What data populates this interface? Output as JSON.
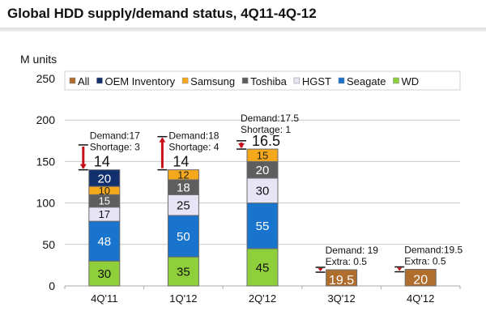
{
  "title": "Global HDD supply/demand status, 4Q11-4Q-12",
  "chart_data": {
    "type": "bar",
    "stacked": true,
    "ylabel": "M units",
    "xlabel": "",
    "ylim": [
      0,
      250
    ],
    "yticks": [
      0,
      50,
      100,
      150,
      200,
      250
    ],
    "grid": true,
    "legend_position": "top",
    "categories": [
      "4Q'11",
      "1Q'12",
      "2Q'12",
      "3Q'12",
      "4Q'12"
    ],
    "series": [
      {
        "name": "WD",
        "color": "#8fcf3c",
        "label_color": "#111111",
        "values": [
          30,
          35,
          45,
          null,
          null
        ]
      },
      {
        "name": "Seagate",
        "color": "#1874cd",
        "label_color": "#ffffff",
        "values": [
          48,
          50,
          55,
          null,
          null
        ]
      },
      {
        "name": "HGST",
        "color": "#e6e4f5",
        "label_color": "#111111",
        "values": [
          17,
          25,
          30,
          null,
          null
        ]
      },
      {
        "name": "Toshiba",
        "color": "#5e5e5e",
        "label_color": "#ffffff",
        "values": [
          15,
          18,
          20,
          null,
          null
        ]
      },
      {
        "name": "Samsung",
        "color": "#f5a81c",
        "label_color": "#222222",
        "values": [
          10,
          12,
          15,
          null,
          null
        ]
      },
      {
        "name": "OEM Inventory",
        "color": "#12306e",
        "label_color": "#ffffff",
        "values": [
          20,
          null,
          null,
          null,
          null
        ]
      },
      {
        "name": "All",
        "color": "#b06e2e",
        "label_color": "#ffffff",
        "values": [
          null,
          null,
          null,
          19.5,
          20
        ]
      }
    ],
    "legend_order": [
      "All",
      "OEM Inventory",
      "Samsung",
      "Toshiba",
      "HGST",
      "Seagate",
      "WD"
    ],
    "totals": [
      "14",
      "14",
      "16.5",
      "19.5",
      "20"
    ],
    "annotations": [
      {
        "category": "4Q'11",
        "line1": "Demand:17",
        "line2": "Shortage: 3",
        "demand": 17,
        "supply": 14
      },
      {
        "category": "1Q'12",
        "line1": "Demand:18",
        "line2": "Shortage: 4",
        "demand": 18,
        "supply": 14
      },
      {
        "category": "2Q'12",
        "line1": "Demand:17.5",
        "line2": "Shortage: 1",
        "demand": 17.5,
        "supply": 16.5
      },
      {
        "category": "3Q'12",
        "line1": "Demand: 19",
        "line2": "Extra: 0.5",
        "demand": 19,
        "supply": 19.5
      },
      {
        "category": "4Q'12",
        "line1": "Demand:19.5",
        "line2": "Extra: 0.5",
        "demand": 19.5,
        "supply": 20
      }
    ]
  }
}
